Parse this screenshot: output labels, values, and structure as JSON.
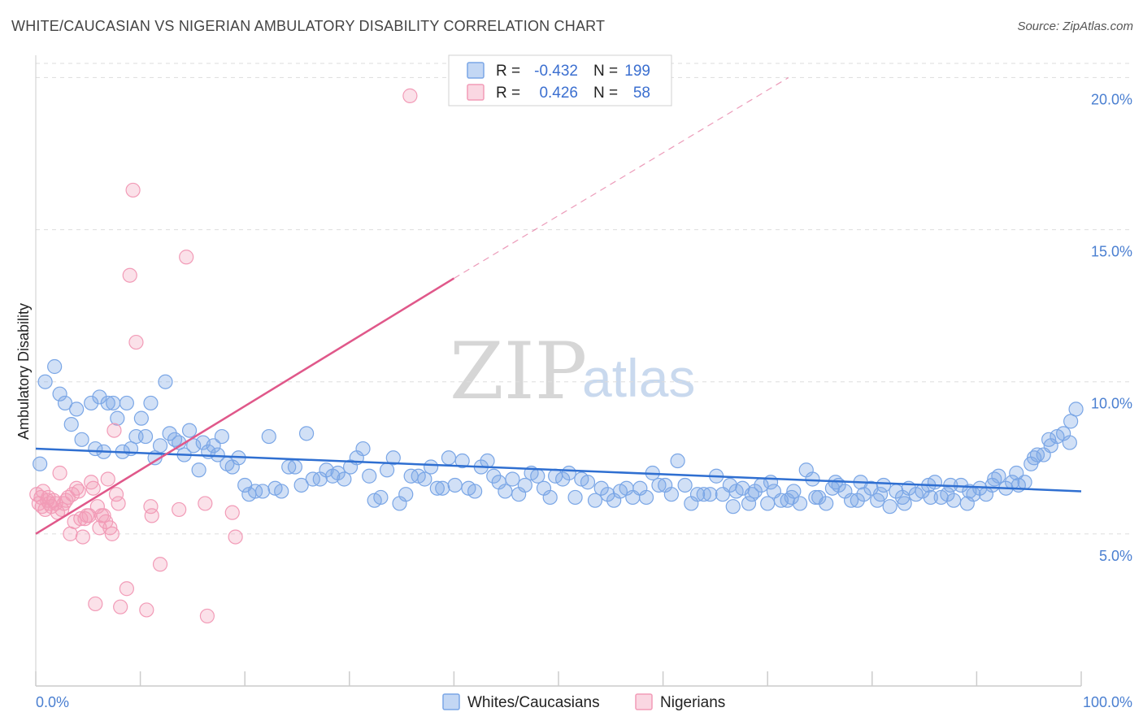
{
  "header": {
    "title": "WHITE/CAUCASIAN VS NIGERIAN AMBULATORY DISABILITY CORRELATION CHART",
    "source": "Source: ZipAtlas.com"
  },
  "watermark": {
    "zip": "ZIP",
    "atlas": "atlas"
  },
  "legend": {
    "rows": [
      {
        "r_label": "R =",
        "r_value": "-0.432",
        "n_label": "N =",
        "n_value": "199",
        "color": "#7aa6e6"
      },
      {
        "r_label": "R =",
        "r_value": "0.426",
        "n_label": "N =",
        "n_value": "58",
        "color": "#f29bb7"
      }
    ]
  },
  "bottom_legend": {
    "items": [
      {
        "label": "Whites/Caucasians",
        "color": "#7aa6e6"
      },
      {
        "label": "Nigerians",
        "color": "#f29bb7"
      }
    ]
  },
  "chart_data": {
    "type": "scatter",
    "title": "WHITE/CAUCASIAN VS NIGERIAN AMBULATORY DISABILITY CORRELATION CHART",
    "xlabel": "",
    "ylabel": "Ambulatory Disability",
    "xlim": [
      0,
      100
    ],
    "ylim": [
      0,
      21
    ],
    "x_tick_labels": {
      "min": "0.0%",
      "max": "100.0%"
    },
    "y_ticks": [
      {
        "value": 5,
        "label": "5.0%"
      },
      {
        "value": 10,
        "label": "10.0%"
      },
      {
        "value": 15,
        "label": "15.0%"
      },
      {
        "value": 20,
        "label": "20.0%"
      }
    ],
    "grid": true,
    "series": [
      {
        "name": "Whites/Caucasians",
        "color": "#7aa6e6",
        "line_color": "#2f6fd1",
        "trend": {
          "x0": 0,
          "y0": 7.8,
          "x1": 100,
          "y1": 6.4
        },
        "points": [
          [
            0.4,
            7.3
          ],
          [
            0.9,
            10.0
          ],
          [
            1.8,
            10.5
          ],
          [
            2.3,
            9.6
          ],
          [
            2.8,
            9.3
          ],
          [
            3.4,
            8.6
          ],
          [
            3.9,
            9.1
          ],
          [
            4.4,
            8.1
          ],
          [
            5.3,
            9.3
          ],
          [
            5.7,
            7.8
          ],
          [
            6.1,
            9.5
          ],
          [
            6.5,
            7.7
          ],
          [
            6.9,
            9.3
          ],
          [
            7.4,
            9.3
          ],
          [
            7.8,
            8.8
          ],
          [
            8.3,
            7.7
          ],
          [
            8.7,
            9.3
          ],
          [
            9.1,
            7.8
          ],
          [
            9.6,
            8.2
          ],
          [
            10.1,
            8.8
          ],
          [
            10.5,
            8.2
          ],
          [
            11.0,
            9.3
          ],
          [
            11.4,
            7.5
          ],
          [
            11.9,
            7.9
          ],
          [
            12.4,
            10.0
          ],
          [
            12.8,
            8.3
          ],
          [
            13.3,
            8.1
          ],
          [
            13.7,
            8.0
          ],
          [
            14.2,
            7.6
          ],
          [
            14.7,
            8.4
          ],
          [
            15.1,
            7.9
          ],
          [
            15.6,
            7.1
          ],
          [
            16.0,
            8.0
          ],
          [
            16.5,
            7.7
          ],
          [
            17.0,
            7.9
          ],
          [
            17.4,
            7.6
          ],
          [
            17.8,
            8.2
          ],
          [
            18.3,
            7.3
          ],
          [
            18.8,
            7.2
          ],
          [
            19.4,
            7.5
          ],
          [
            20.0,
            6.6
          ],
          [
            20.4,
            6.3
          ],
          [
            21.0,
            6.4
          ],
          [
            21.7,
            6.4
          ],
          [
            22.3,
            8.2
          ],
          [
            22.9,
            6.5
          ],
          [
            23.5,
            6.4
          ],
          [
            24.2,
            7.2
          ],
          [
            24.8,
            7.2
          ],
          [
            25.4,
            6.6
          ],
          [
            25.9,
            8.3
          ],
          [
            26.5,
            6.8
          ],
          [
            27.2,
            6.8
          ],
          [
            27.8,
            7.1
          ],
          [
            28.4,
            6.9
          ],
          [
            28.9,
            7.0
          ],
          [
            29.5,
            6.8
          ],
          [
            30.1,
            7.2
          ],
          [
            30.7,
            7.5
          ],
          [
            31.3,
            7.8
          ],
          [
            31.9,
            6.9
          ],
          [
            32.4,
            6.1
          ],
          [
            33.0,
            6.2
          ],
          [
            33.6,
            7.1
          ],
          [
            34.2,
            7.5
          ],
          [
            34.8,
            6.0
          ],
          [
            35.4,
            6.3
          ],
          [
            35.9,
            6.9
          ],
          [
            36.6,
            6.9
          ],
          [
            37.2,
            6.8
          ],
          [
            37.8,
            7.2
          ],
          [
            38.4,
            6.5
          ],
          [
            38.9,
            6.5
          ],
          [
            39.5,
            7.5
          ],
          [
            40.1,
            6.6
          ],
          [
            40.8,
            7.4
          ],
          [
            41.4,
            6.5
          ],
          [
            42.0,
            6.4
          ],
          [
            42.6,
            7.2
          ],
          [
            43.2,
            7.4
          ],
          [
            43.8,
            6.9
          ],
          [
            44.3,
            6.7
          ],
          [
            44.9,
            6.4
          ],
          [
            45.6,
            6.8
          ],
          [
            46.2,
            6.3
          ],
          [
            46.8,
            6.6
          ],
          [
            47.4,
            7.0
          ],
          [
            48.0,
            6.9
          ],
          [
            48.6,
            6.5
          ],
          [
            49.2,
            6.2
          ],
          [
            49.7,
            6.9
          ],
          [
            50.4,
            6.8
          ],
          [
            51.0,
            7.0
          ],
          [
            51.6,
            6.2
          ],
          [
            52.2,
            6.8
          ],
          [
            52.8,
            6.7
          ],
          [
            53.5,
            6.1
          ],
          [
            54.1,
            6.5
          ],
          [
            54.7,
            6.3
          ],
          [
            55.3,
            6.1
          ],
          [
            55.9,
            6.4
          ],
          [
            56.5,
            6.5
          ],
          [
            57.1,
            6.2
          ],
          [
            57.8,
            6.5
          ],
          [
            58.4,
            6.2
          ],
          [
            59.0,
            7.0
          ],
          [
            59.6,
            6.6
          ],
          [
            60.2,
            6.6
          ],
          [
            60.8,
            6.3
          ],
          [
            61.4,
            7.4
          ],
          [
            62.1,
            6.6
          ],
          [
            62.7,
            6.0
          ],
          [
            63.3,
            6.3
          ],
          [
            63.9,
            6.3
          ],
          [
            64.5,
            6.3
          ],
          [
            65.1,
            6.9
          ],
          [
            65.7,
            6.3
          ],
          [
            66.4,
            6.6
          ],
          [
            67.0,
            6.4
          ],
          [
            67.6,
            6.5
          ],
          [
            68.2,
            6.0
          ],
          [
            68.8,
            6.4
          ],
          [
            69.4,
            6.6
          ],
          [
            70.0,
            6.0
          ],
          [
            70.6,
            6.4
          ],
          [
            71.3,
            6.1
          ],
          [
            71.9,
            6.1
          ],
          [
            72.5,
            6.4
          ],
          [
            73.1,
            6.0
          ],
          [
            73.7,
            7.1
          ],
          [
            74.3,
            6.8
          ],
          [
            74.9,
            6.2
          ],
          [
            75.6,
            6.0
          ],
          [
            76.2,
            6.5
          ],
          [
            76.8,
            6.6
          ],
          [
            77.4,
            6.4
          ],
          [
            78.0,
            6.1
          ],
          [
            78.6,
            6.1
          ],
          [
            79.2,
            6.3
          ],
          [
            79.9,
            6.5
          ],
          [
            80.5,
            6.1
          ],
          [
            81.1,
            6.6
          ],
          [
            81.7,
            5.9
          ],
          [
            82.3,
            6.4
          ],
          [
            82.9,
            6.2
          ],
          [
            83.5,
            6.5
          ],
          [
            84.2,
            6.3
          ],
          [
            84.8,
            6.4
          ],
          [
            85.4,
            6.6
          ],
          [
            86.0,
            6.7
          ],
          [
            86.6,
            6.2
          ],
          [
            87.2,
            6.3
          ],
          [
            87.8,
            6.1
          ],
          [
            88.5,
            6.6
          ],
          [
            89.1,
            6.0
          ],
          [
            89.7,
            6.3
          ],
          [
            90.3,
            6.5
          ],
          [
            90.9,
            6.3
          ],
          [
            91.5,
            6.6
          ],
          [
            92.1,
            6.9
          ],
          [
            92.8,
            6.5
          ],
          [
            93.4,
            6.7
          ],
          [
            94.0,
            6.6
          ],
          [
            94.6,
            6.7
          ],
          [
            95.2,
            7.3
          ],
          [
            95.8,
            7.6
          ],
          [
            96.4,
            7.6
          ],
          [
            97.1,
            7.9
          ],
          [
            97.7,
            8.2
          ],
          [
            98.3,
            8.3
          ],
          [
            98.9,
            8.0
          ],
          [
            99.5,
            9.1
          ],
          [
            99.0,
            8.7
          ],
          [
            96.9,
            8.1
          ],
          [
            95.5,
            7.5
          ],
          [
            93.8,
            7.0
          ],
          [
            91.7,
            6.8
          ],
          [
            89.3,
            6.4
          ],
          [
            87.5,
            6.6
          ],
          [
            85.6,
            6.2
          ],
          [
            83.1,
            6.0
          ],
          [
            80.8,
            6.3
          ],
          [
            78.9,
            6.7
          ],
          [
            76.5,
            6.7
          ],
          [
            74.6,
            6.2
          ],
          [
            72.3,
            6.2
          ],
          [
            70.3,
            6.7
          ],
          [
            68.5,
            6.3
          ],
          [
            66.7,
            5.9
          ]
        ]
      },
      {
        "name": "Nigerians",
        "color": "#f29bb7",
        "line_color": "#e0588a",
        "trend": {
          "x0": 0,
          "y0": 5.0,
          "x1": 40,
          "y1": 13.4,
          "dash_x1": 72,
          "dash_y1": 20.0
        },
        "points": [
          [
            0.1,
            6.3
          ],
          [
            0.3,
            6.0
          ],
          [
            0.5,
            6.2
          ],
          [
            0.7,
            6.4
          ],
          [
            0.9,
            5.8
          ],
          [
            1.1,
            6.1
          ],
          [
            1.3,
            6.0
          ],
          [
            1.5,
            5.9
          ],
          [
            1.7,
            6.1
          ],
          [
            1.9,
            6.0
          ],
          [
            2.1,
            5.7
          ],
          [
            2.3,
            7.0
          ],
          [
            2.5,
            5.8
          ],
          [
            2.7,
            6.0
          ],
          [
            2.9,
            6.1
          ],
          [
            3.1,
            6.2
          ],
          [
            3.3,
            5.0
          ],
          [
            3.5,
            6.3
          ],
          [
            3.7,
            5.4
          ],
          [
            3.9,
            6.5
          ],
          [
            4.1,
            6.4
          ],
          [
            4.3,
            5.5
          ],
          [
            4.5,
            4.9
          ],
          [
            4.7,
            5.5
          ],
          [
            4.9,
            5.6
          ],
          [
            5.1,
            5.6
          ],
          [
            5.3,
            6.7
          ],
          [
            5.5,
            6.5
          ],
          [
            5.7,
            2.7
          ],
          [
            5.9,
            5.9
          ],
          [
            6.1,
            5.2
          ],
          [
            6.3,
            5.6
          ],
          [
            6.5,
            5.6
          ],
          [
            6.7,
            5.4
          ],
          [
            6.9,
            6.8
          ],
          [
            7.1,
            5.2
          ],
          [
            7.3,
            5.0
          ],
          [
            7.5,
            8.4
          ],
          [
            7.7,
            6.3
          ],
          [
            7.9,
            6.0
          ],
          [
            8.1,
            2.6
          ],
          [
            8.7,
            3.2
          ],
          [
            9.0,
            13.5
          ],
          [
            9.6,
            11.3
          ],
          [
            9.3,
            16.3
          ],
          [
            10.6,
            2.5
          ],
          [
            11.0,
            5.9
          ],
          [
            11.1,
            5.6
          ],
          [
            11.9,
            4.0
          ],
          [
            13.7,
            5.8
          ],
          [
            14.4,
            14.1
          ],
          [
            16.2,
            6.0
          ],
          [
            16.4,
            2.3
          ],
          [
            18.8,
            5.7
          ],
          [
            19.1,
            4.9
          ],
          [
            35.8,
            19.4
          ],
          [
            1.2,
            6.2
          ],
          [
            0.6,
            5.9
          ]
        ]
      }
    ]
  }
}
